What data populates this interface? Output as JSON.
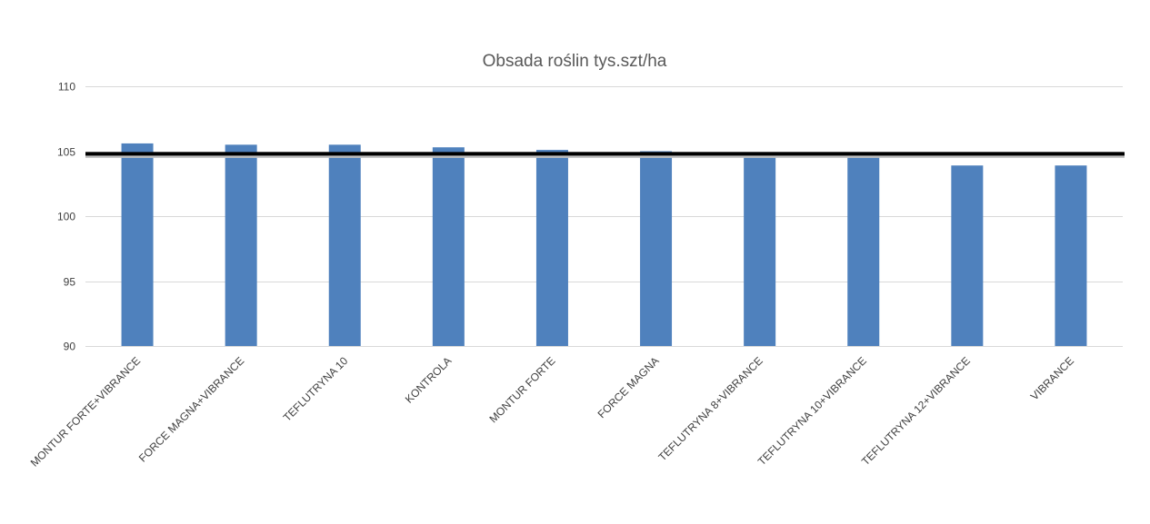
{
  "chart_data": {
    "type": "bar",
    "title": "Obsada roślin tys.szt/ha",
    "xlabel": "",
    "ylabel": "",
    "ylim": [
      90,
      110
    ],
    "yticks": [
      90,
      95,
      100,
      105,
      110
    ],
    "grid": true,
    "categories": [
      "MONTUR FORTE+VIBRANCE",
      "FORCE MAGNA+VIBRANCE",
      "TEFLUTRYNA 10",
      "KONTROLA",
      "MONTUR FORTE",
      "FORCE MAGNA",
      "TEFLUTRYNA 8+VIBRANCE",
      "TEFLUTRYNA 10+VIBRANCE",
      "TEFLUTRYNA 12+VIBRANCE",
      "VIBRANCE"
    ],
    "values": [
      105.6,
      105.5,
      105.5,
      105.3,
      105.1,
      105.0,
      104.9,
      104.8,
      103.9,
      103.9
    ],
    "reference_line": 104.8,
    "bar_color": "#4f81bd",
    "reference_line_color": "#000000"
  }
}
